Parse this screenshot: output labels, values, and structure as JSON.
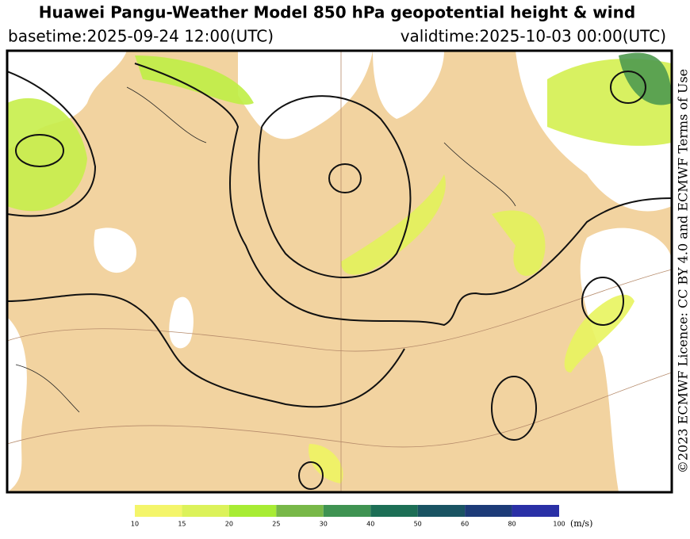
{
  "header": {
    "title": "Huawei Pangu-Weather Model 850 hPa geopotential height & wind",
    "basetime": "basetime:2025-09-24 12:00(UTC)",
    "validtime": "validtime:2025-10-03 00:00(UTC)"
  },
  "credit": "©2023 ECMWF Licence: CC BY 4.0 and ECMWF Terms of Use",
  "legend": {
    "ticks": [
      10,
      15,
      20,
      25,
      30,
      40,
      50,
      60,
      80,
      100
    ],
    "colors": [
      "#f4f56a",
      "#dcf25a",
      "#a8ec34",
      "#78b848",
      "#3f9352",
      "#1d6f56",
      "#1a5463",
      "#1d3b78",
      "#2a30a6"
    ],
    "unit": "(m/s)"
  }
}
